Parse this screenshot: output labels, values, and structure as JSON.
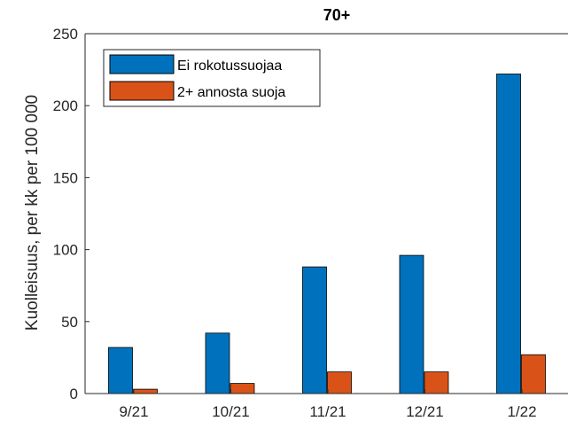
{
  "chart_data": {
    "type": "bar",
    "title": "70+",
    "xlabel": "",
    "ylabel": "Kuolleisuus, per kk per 100 000",
    "categories": [
      "9/21",
      "10/21",
      "11/21",
      "12/21",
      "1/22"
    ],
    "series": [
      {
        "name": "Ei rokotussuojaa",
        "color": "#0072BD",
        "values": [
          32,
          42,
          88,
          96,
          222
        ]
      },
      {
        "name": "2+ annosta suoja",
        "color": "#D95319",
        "values": [
          3,
          7,
          15,
          15,
          27
        ]
      }
    ],
    "ylim": [
      0,
      250
    ],
    "yticks": [
      0,
      50,
      100,
      150,
      200,
      250
    ],
    "yticklabels": [
      "0",
      "50",
      "100",
      "150",
      "200",
      "250"
    ],
    "grid": false,
    "legend_position": "top-left"
  }
}
